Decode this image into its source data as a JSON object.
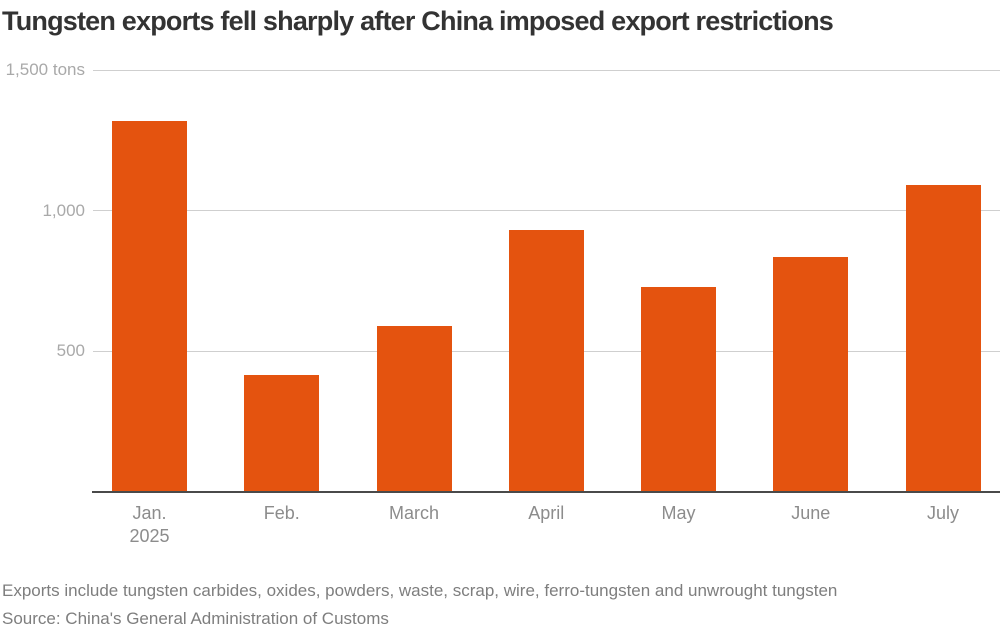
{
  "title": "Tungsten exports fell sharply after China imposed export restrictions",
  "chart_data": {
    "type": "bar",
    "title": "Tungsten exports fell sharply after China imposed export restrictions",
    "categories": [
      "Jan. 2025",
      "Feb.",
      "March",
      "April",
      "May",
      "June",
      "July"
    ],
    "category_label_lines": [
      [
        "Jan.",
        "2025"
      ],
      [
        "Feb."
      ],
      [
        "March"
      ],
      [
        "April"
      ],
      [
        "May"
      ],
      [
        "June"
      ],
      [
        "July"
      ]
    ],
    "values": [
      1320,
      415,
      590,
      930,
      730,
      835,
      1090
    ],
    "xlabel": "",
    "ylabel": "tons",
    "ylim": [
      0,
      1500
    ],
    "yticks": [
      {
        "value": 1500,
        "label": "1,500 tons"
      },
      {
        "value": 1000,
        "label": "1,000"
      },
      {
        "value": 500,
        "label": "500"
      }
    ],
    "grid": true,
    "legend": "none",
    "bar_color": "#e4530f"
  },
  "footer": {
    "note": "Exports include tungsten carbides, oxides, powders, waste, scrap, wire, ferro-tungsten and unwrought tungsten",
    "source": "Source: China's General Administration of Customs"
  },
  "colors": {
    "bar": "#e4530f",
    "title_text": "#333333",
    "gridline": "#cfcfcf",
    "axis_line": "#4a4a4a",
    "y_tick_label": "#a9a9a9",
    "x_category_label": "#8c8c8c",
    "footer_text": "#7e7e7e",
    "background": "#ffffff"
  }
}
